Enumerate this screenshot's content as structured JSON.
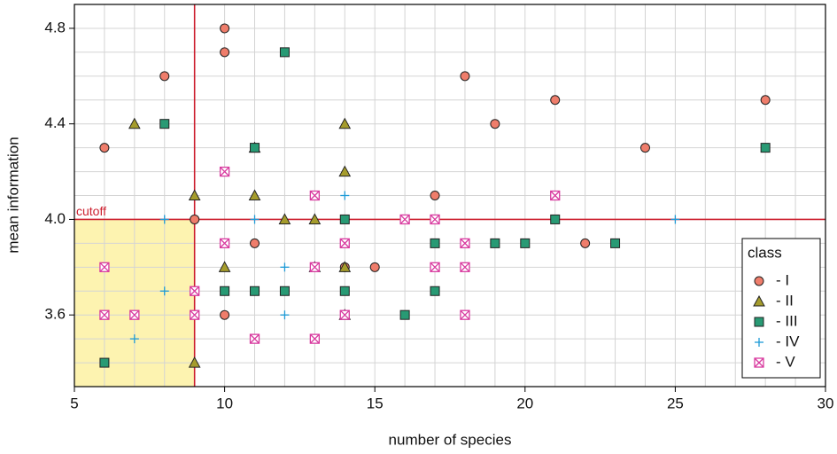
{
  "chart_data": {
    "type": "scatter",
    "x_label": "number of species",
    "y_label": "mean information",
    "xlim": [
      5,
      30
    ],
    "ylim": [
      3.3,
      4.9
    ],
    "xticks": [
      5,
      10,
      15,
      20,
      25,
      30
    ],
    "yticks": [
      3.6,
      {
        "value": 4,
        "label": "4.0"
      },
      4.4,
      4.8
    ],
    "xgrid": [
      5,
      6,
      7,
      8,
      9,
      10,
      11,
      12,
      13,
      14,
      15,
      16,
      17,
      18,
      19,
      20,
      21,
      22,
      23,
      24,
      25,
      26,
      27,
      28,
      29,
      30
    ],
    "ygrid": [
      3.3,
      3.4,
      3.5,
      3.6,
      3.7,
      3.8,
      3.9,
      4.0,
      4.1,
      4.2,
      4.3,
      4.4,
      4.5,
      4.6,
      4.7,
      4.8,
      4.9
    ],
    "grid": true,
    "cutoff": {
      "label": "cutoff",
      "x": 9,
      "y": 4.0,
      "color": "#cc1f2e",
      "shade": "#fdf3b0"
    },
    "legend": {
      "title": "class",
      "corner": "lower right"
    },
    "series": [
      {
        "name": "- I",
        "marker": "circle",
        "color": "#ef7d6b",
        "x": [
          6,
          8,
          10,
          10,
          18,
          19,
          21,
          28,
          24,
          17,
          22,
          10,
          9,
          11,
          14,
          15
        ],
        "values": [
          4.3,
          4.6,
          4.8,
          4.7,
          4.6,
          4.4,
          4.5,
          4.5,
          4.3,
          4.1,
          3.9,
          3.6,
          4.0,
          3.9,
          3.8,
          3.8
        ]
      },
      {
        "name": "- II",
        "marker": "triangle",
        "color": "#a59c2c",
        "x": [
          7,
          11,
          14,
          9,
          11,
          14,
          12,
          13,
          10,
          13,
          14,
          14,
          9
        ],
        "values": [
          4.4,
          4.3,
          4.4,
          4.1,
          4.1,
          4.2,
          4.0,
          4.0,
          3.8,
          3.8,
          3.8,
          3.6,
          3.4
        ]
      },
      {
        "name": "- III",
        "marker": "square",
        "color": "#289a74",
        "x": [
          8,
          12,
          11,
          28,
          14,
          21,
          17,
          19,
          20,
          23,
          10,
          11,
          12,
          14,
          17,
          16,
          6
        ],
        "values": [
          4.4,
          4.7,
          4.3,
          4.3,
          4.0,
          4.0,
          3.9,
          3.9,
          3.9,
          3.9,
          3.7,
          3.7,
          3.7,
          3.7,
          3.7,
          3.6,
          3.4
        ]
      },
      {
        "name": "- IV",
        "marker": "plus",
        "color": "#1e9bd7",
        "x": [
          8,
          11,
          14,
          25,
          12,
          8,
          12,
          7,
          14
        ],
        "values": [
          4.0,
          4.0,
          4.1,
          4.0,
          3.8,
          3.7,
          3.6,
          3.5,
          3.9
        ]
      },
      {
        "name": "- V",
        "marker": "crossbox",
        "color": "#d83a9f",
        "x": [
          6,
          6,
          7,
          9,
          9,
          10,
          10,
          13,
          14,
          13,
          11,
          13,
          14,
          16,
          17,
          17,
          18,
          18,
          18,
          21
        ],
        "values": [
          3.8,
          3.6,
          3.6,
          3.7,
          3.6,
          4.2,
          3.9,
          4.1,
          3.9,
          3.8,
          3.5,
          3.5,
          3.6,
          4.0,
          4.0,
          3.8,
          3.9,
          3.8,
          3.6,
          4.1
        ]
      }
    ]
  }
}
